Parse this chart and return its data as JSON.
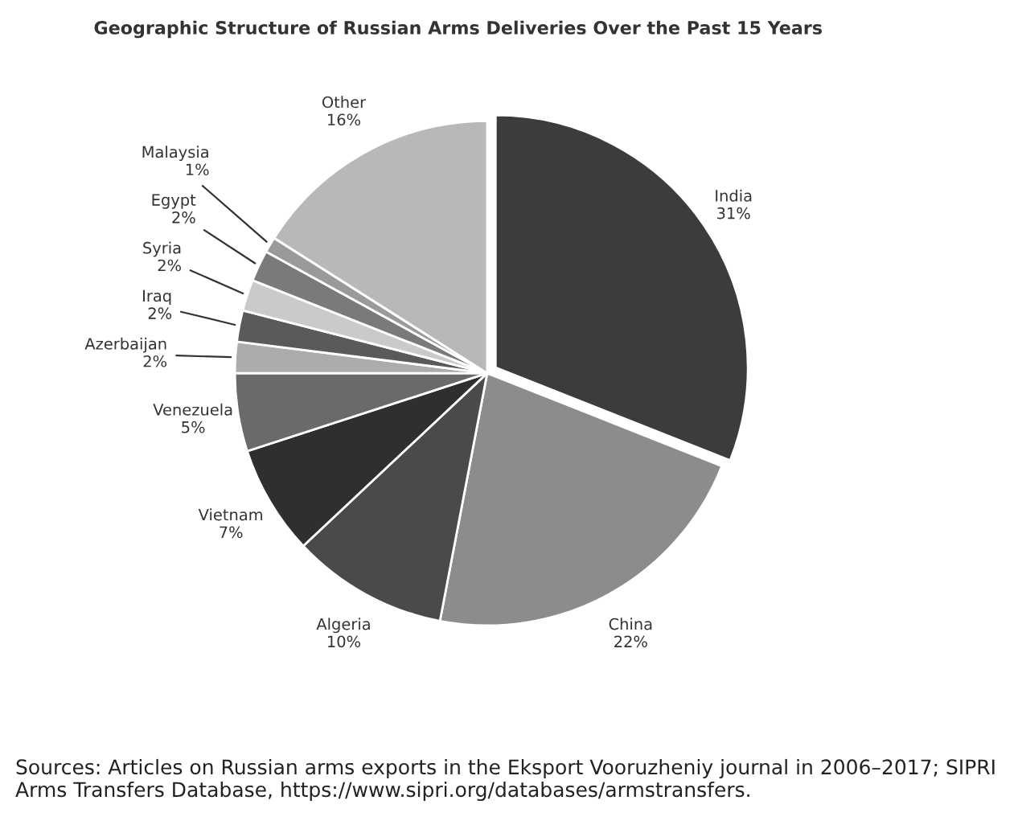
{
  "chart_data": {
    "type": "pie",
    "title": "Geographic Structure of Russian Arms Deliveries Over the Past 15 Years",
    "categories": [
      "India",
      "China",
      "Algeria",
      "Vietnam",
      "Venezuela",
      "Azerbaijan",
      "Iraq",
      "Syria",
      "Egypt",
      "Malaysia",
      "Other"
    ],
    "values": [
      31,
      22,
      10,
      7,
      5,
      2,
      2,
      2,
      2,
      1,
      16
    ],
    "value_labels": [
      "31%",
      "22%",
      "10%",
      "7%",
      "5%",
      "2%",
      "2%",
      "2%",
      "2%",
      "1%",
      "16%"
    ],
    "colors": [
      "#3c3c3c",
      "#8c8c8c",
      "#4a4a4a",
      "#2f2f2f",
      "#6a6a6a",
      "#acacac",
      "#5a5a5a",
      "#cacaca",
      "#7a7a7a",
      "#9a9a9a",
      "#b8b8b8"
    ],
    "legend": false,
    "annotations": [
      "Sources: Articles on Russian arms exports in the Eksport Vooruzheniy journal in 2006–2017; SIPRI Arms Transfers Database, https://www.sipri.org/databases/armstransfers."
    ]
  }
}
